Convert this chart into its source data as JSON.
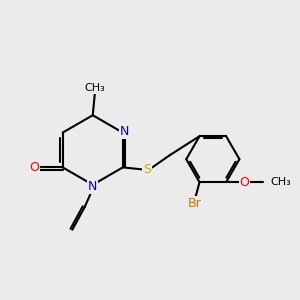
{
  "bg_color": "#ebebeb",
  "bond_color": "#000000",
  "bond_width": 1.5,
  "dbo": 0.055,
  "atom_colors": {
    "N": "#0000cc",
    "O": "#ff0000",
    "S": "#ccaa00",
    "Br": "#cc7700",
    "C": "#000000"
  },
  "font_size_atom": 9,
  "font_size_methyl": 8
}
